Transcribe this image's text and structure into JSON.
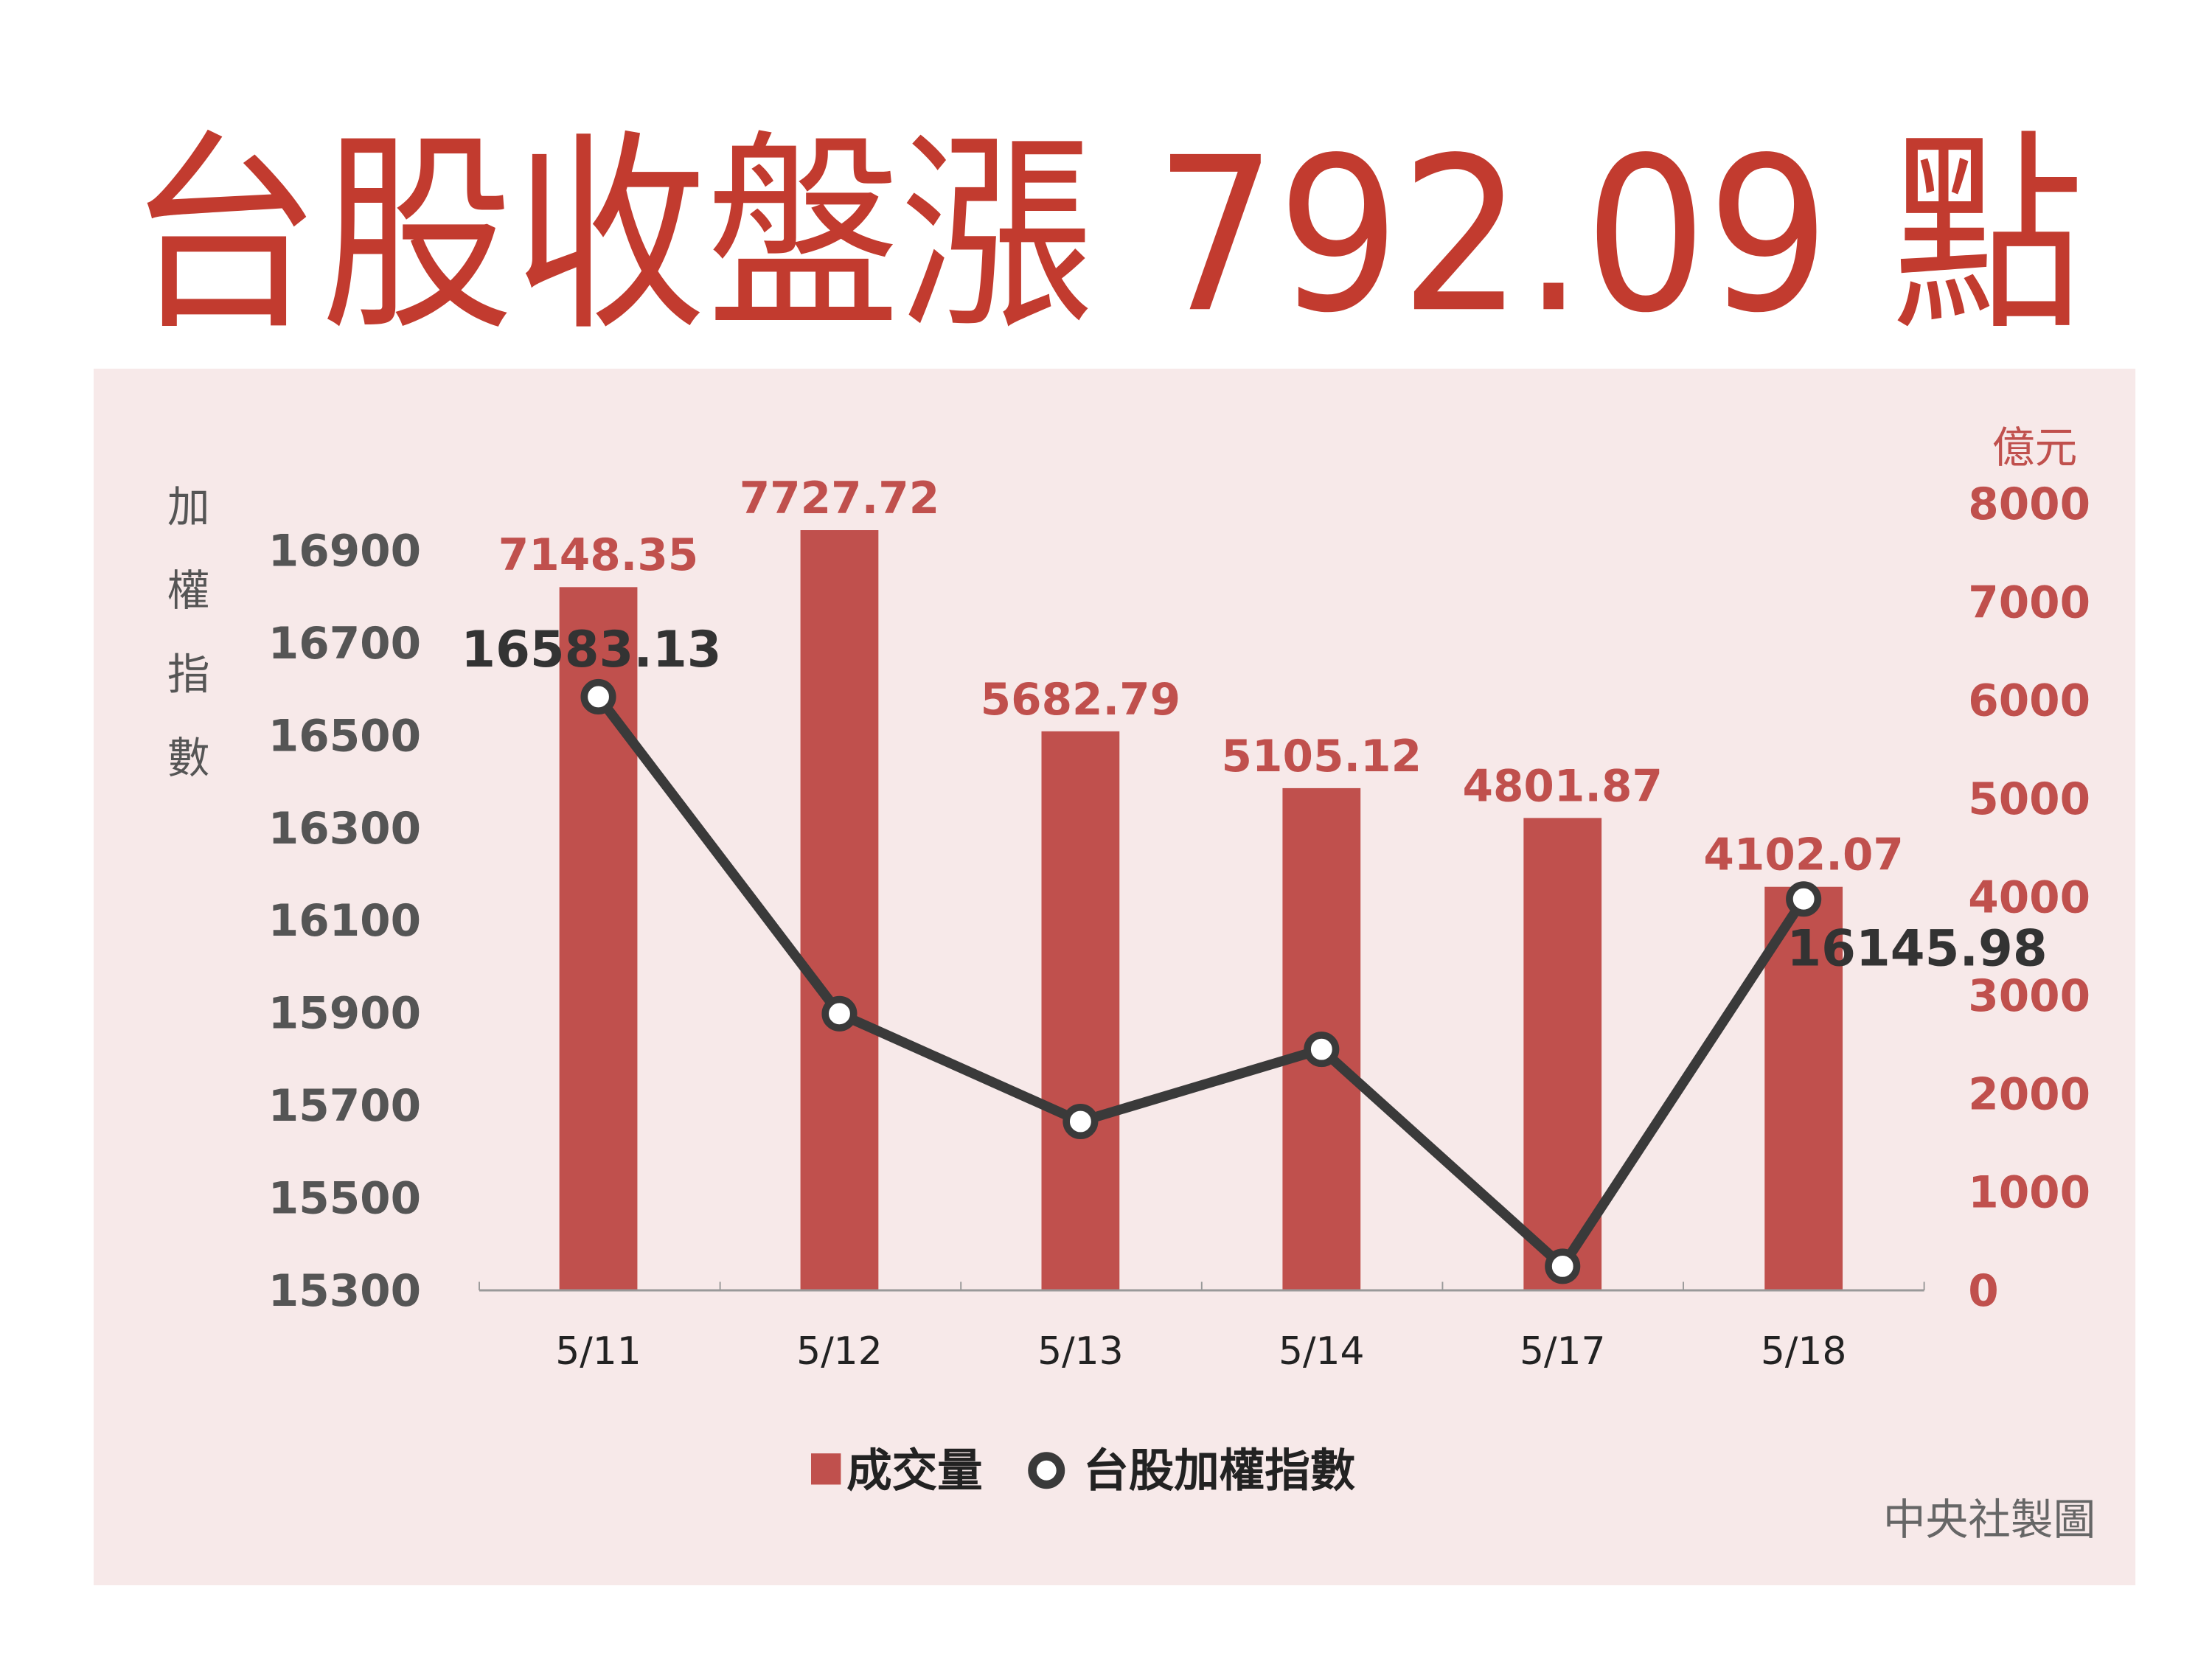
{
  "title": "台股收盤漲 792.09 點",
  "credit": "中央社製圖",
  "colors": {
    "title": "#c23b2f",
    "panel": "#f7e9e9",
    "bar": "#c0504d",
    "line": "#3a3a3a",
    "left_axis_text": "#555555",
    "right_axis_text": "#c0504d"
  },
  "chart_data": {
    "type": "bar+line",
    "categories": [
      "5/11",
      "5/12",
      "5/13",
      "5/14",
      "5/17",
      "5/18"
    ],
    "series": [
      {
        "name": "成交量",
        "type": "bar",
        "axis": "right",
        "values": [
          7148.35,
          7727.72,
          5682.79,
          5105.12,
          4801.87,
          4102.07
        ],
        "labels": [
          "7148.35",
          "7727.72",
          "5682.79",
          "5105.12",
          "4801.87",
          "4102.07"
        ]
      },
      {
        "name": "台股加權指數",
        "type": "line",
        "axis": "left",
        "values": [
          16583.13,
          15898,
          15665,
          15821,
          15352,
          16145.98
        ],
        "labels": [
          "16583.13",
          "",
          "",
          "",
          "",
          "16145.98"
        ]
      }
    ],
    "left_axis": {
      "label": "加權指數",
      "ylim": [
        15300,
        16900
      ],
      "ticks": [
        "16900",
        "16700",
        "16500",
        "16300",
        "16100",
        "15900",
        "15700",
        "15500",
        "15300"
      ]
    },
    "right_axis": {
      "label": "億元",
      "ylim": [
        0,
        8000
      ],
      "ticks": [
        "8000",
        "7000",
        "6000",
        "5000",
        "4000",
        "3000",
        "2000",
        "1000",
        "0"
      ]
    },
    "legend": {
      "position": "bottom",
      "entries": [
        "成交量",
        "台股加權指數"
      ]
    },
    "grid": false
  }
}
